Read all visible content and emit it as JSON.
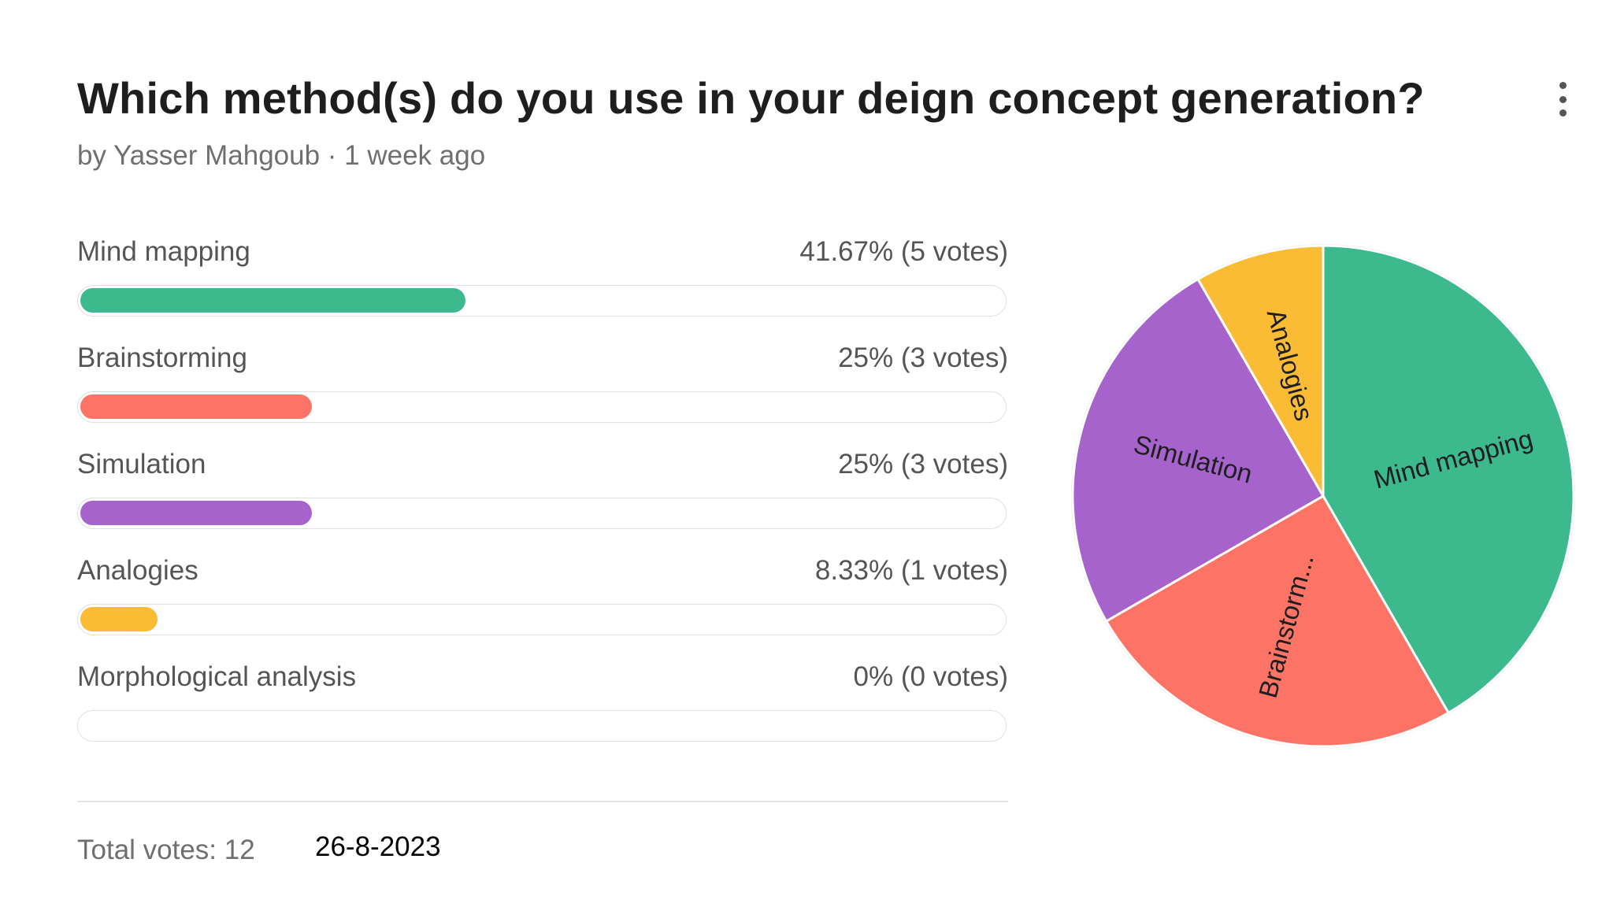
{
  "poll": {
    "title": "Which method(s) do you use in your deign concept generation?",
    "byline": "by Yasser Mahgoub · 1 week ago",
    "total_votes_label": "Total votes: 12",
    "date_annotation": "26-8-2023",
    "menu_icon": "more-vertical-icon"
  },
  "options": [
    {
      "label": "Mind mapping",
      "value_text": "41.67% (5 votes)",
      "percent": 41.67,
      "color": "#3db98e"
    },
    {
      "label": "Brainstorming",
      "value_text": "25% (3 votes)",
      "percent": 25,
      "color": "#fd7466"
    },
    {
      "label": "Simulation",
      "value_text": "25% (3 votes)",
      "percent": 25,
      "color": "#a663cc"
    },
    {
      "label": "Analogies",
      "value_text": "8.33% (1 votes)",
      "percent": 8.33,
      "color": "#fbbc35"
    },
    {
      "label": "Morphological analysis",
      "value_text": "0% (0 votes)",
      "percent": 0,
      "color": "#cccccc"
    }
  ],
  "chart_data": {
    "type": "pie",
    "categories": [
      "Mind mapping",
      "Brainstorming",
      "Simulation",
      "Analogies",
      "Morphological analysis"
    ],
    "values": [
      5,
      3,
      3,
      1,
      0
    ],
    "percentages": [
      41.67,
      25,
      25,
      8.33,
      0
    ],
    "slice_labels": [
      "Mind mapping",
      "Brainstorm...",
      "Simulation",
      "Analogies",
      ""
    ],
    "colors": [
      "#3db98e",
      "#fd7466",
      "#a663cc",
      "#fbbc35",
      "#cccccc"
    ],
    "title": "",
    "legend": "none"
  }
}
